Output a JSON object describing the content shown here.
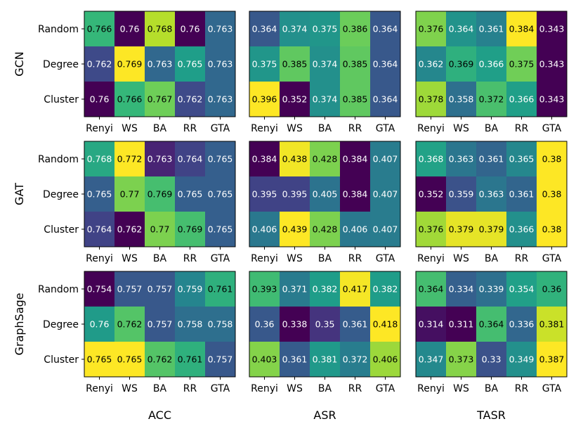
{
  "chart_data": {
    "type": "heatmap",
    "colormap": "viridis",
    "rows": [
      "Random",
      "Degree",
      "Cluster"
    ],
    "columns": [
      "Renyi",
      "WS",
      "BA",
      "RR",
      "GTA"
    ],
    "row_groups": [
      "GCN",
      "GAT",
      "GraphSage"
    ],
    "col_groups": [
      "ACC",
      "ASR",
      "TASR"
    ],
    "panels": [
      [
        {
          "model": "GCN",
          "metric": "ACC",
          "values": [
            [
              0.766,
              0.76,
              0.768,
              0.76,
              0.763
            ],
            [
              0.762,
              0.769,
              0.763,
              0.765,
              0.763
            ],
            [
              0.76,
              0.766,
              0.767,
              0.762,
              0.763
            ]
          ]
        },
        {
          "model": "GCN",
          "metric": "ASR",
          "values": [
            [
              0.364,
              0.374,
              0.375,
              0.386,
              0.364
            ],
            [
              0.375,
              0.385,
              0.374,
              0.385,
              0.364
            ],
            [
              0.396,
              0.352,
              0.374,
              0.385,
              0.364
            ]
          ]
        },
        {
          "model": "GCN",
          "metric": "TASR",
          "values": [
            [
              0.376,
              0.364,
              0.361,
              0.384,
              0.343
            ],
            [
              0.362,
              0.369,
              0.366,
              0.375,
              0.343
            ],
            [
              0.378,
              0.358,
              0.372,
              0.366,
              0.343
            ]
          ]
        }
      ],
      [
        {
          "model": "GAT",
          "metric": "ACC",
          "values": [
            [
              0.768,
              0.772,
              0.763,
              0.764,
              0.765
            ],
            [
              0.765,
              0.77,
              0.769,
              0.765,
              0.765
            ],
            [
              0.764,
              0.762,
              0.77,
              0.769,
              0.765
            ]
          ]
        },
        {
          "model": "GAT",
          "metric": "ASR",
          "values": [
            [
              0.384,
              0.438,
              0.428,
              0.384,
              0.407
            ],
            [
              0.395,
              0.395,
              0.405,
              0.384,
              0.407
            ],
            [
              0.406,
              0.439,
              0.428,
              0.406,
              0.407
            ]
          ]
        },
        {
          "model": "GAT",
          "metric": "TASR",
          "values": [
            [
              0.368,
              0.363,
              0.361,
              0.365,
              0.38
            ],
            [
              0.352,
              0.359,
              0.363,
              0.361,
              0.38
            ],
            [
              0.376,
              0.379,
              0.379,
              0.366,
              0.38
            ]
          ]
        }
      ],
      [
        {
          "model": "GraphSage",
          "metric": "ACC",
          "values": [
            [
              0.754,
              0.757,
              0.757,
              0.759,
              0.761
            ],
            [
              0.76,
              0.762,
              0.757,
              0.758,
              0.758
            ],
            [
              0.765,
              0.765,
              0.762,
              0.761,
              0.757
            ]
          ]
        },
        {
          "model": "GraphSage",
          "metric": "ASR",
          "values": [
            [
              0.393,
              0.371,
              0.382,
              0.417,
              0.382
            ],
            [
              0.36,
              0.338,
              0.35,
              0.361,
              0.418
            ],
            [
              0.403,
              0.361,
              0.381,
              0.372,
              0.406
            ]
          ]
        },
        {
          "model": "GraphSage",
          "metric": "TASR",
          "values": [
            [
              0.364,
              0.334,
              0.339,
              0.354,
              0.36
            ],
            [
              0.314,
              0.311,
              0.364,
              0.336,
              0.381
            ],
            [
              0.347,
              0.373,
              0.33,
              0.349,
              0.387
            ]
          ]
        }
      ]
    ]
  }
}
